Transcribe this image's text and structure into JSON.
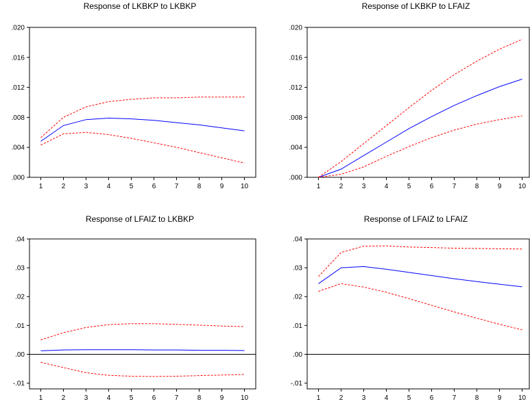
{
  "chart_data": [
    {
      "type": "line",
      "title": "Response of LKBKP to LKBKP",
      "x": [
        1,
        2,
        3,
        4,
        5,
        6,
        7,
        8,
        9,
        10
      ],
      "ylim": [
        0,
        0.02
      ],
      "yticks": [
        ".000",
        ".004",
        ".008",
        ".012",
        ".016",
        ".020"
      ],
      "ytick_values": [
        0,
        0.004,
        0.008,
        0.012,
        0.016,
        0.02
      ],
      "xtick_labels": [
        "1",
        "2",
        "3",
        "4",
        "5",
        "6",
        "7",
        "8",
        "9",
        "10"
      ],
      "zero_line": false,
      "series": [
        {
          "role": "response",
          "color": "#0000ff",
          "style": "solid",
          "values": [
            0.0048,
            0.0069,
            0.0077,
            0.0079,
            0.0078,
            0.0076,
            0.0073,
            0.007,
            0.0066,
            0.0062
          ]
        },
        {
          "role": "upper",
          "color": "#ff0000",
          "style": "dashed",
          "values": [
            0.0053,
            0.008,
            0.0094,
            0.0101,
            0.0104,
            0.0106,
            0.0106,
            0.0107,
            0.0107,
            0.0107
          ]
        },
        {
          "role": "lower",
          "color": "#ff0000",
          "style": "dashed",
          "values": [
            0.0043,
            0.0058,
            0.006,
            0.0057,
            0.0052,
            0.0046,
            0.004,
            0.0033,
            0.0026,
            0.0019
          ]
        }
      ]
    },
    {
      "type": "line",
      "title": "Response of LKBKP to LFAIZ",
      "x": [
        1,
        2,
        3,
        4,
        5,
        6,
        7,
        8,
        9,
        10
      ],
      "ylim": [
        0,
        0.02
      ],
      "yticks": [
        ".000",
        ".004",
        ".008",
        ".012",
        ".016",
        ".020"
      ],
      "ytick_values": [
        0,
        0.004,
        0.008,
        0.012,
        0.016,
        0.02
      ],
      "xtick_labels": [
        "1",
        "2",
        "3",
        "4",
        "5",
        "6",
        "7",
        "8",
        "9",
        "10"
      ],
      "zero_line": false,
      "series": [
        {
          "role": "response",
          "color": "#0000ff",
          "style": "solid",
          "values": [
            0.0,
            0.0011,
            0.0029,
            0.0047,
            0.0065,
            0.0081,
            0.0096,
            0.0109,
            0.0121,
            0.0131
          ]
        },
        {
          "role": "upper",
          "color": "#ff0000",
          "style": "dashed",
          "values": [
            0.0,
            0.0021,
            0.0045,
            0.0069,
            0.0093,
            0.0116,
            0.0137,
            0.0155,
            0.0171,
            0.0184
          ]
        },
        {
          "role": "lower",
          "color": "#ff0000",
          "style": "dashed",
          "values": [
            0.0,
            0.0004,
            0.0014,
            0.0028,
            0.0041,
            0.0053,
            0.0063,
            0.0071,
            0.0077,
            0.0082
          ]
        }
      ]
    },
    {
      "type": "line",
      "title": "Response of LFAIZ to LKBKP",
      "x": [
        1,
        2,
        3,
        4,
        5,
        6,
        7,
        8,
        9,
        10
      ],
      "ylim": [
        -0.012,
        0.04
      ],
      "yticks": [
        "-.01",
        ".00",
        ".01",
        ".02",
        ".03",
        ".04"
      ],
      "ytick_values": [
        -0.01,
        0,
        0.01,
        0.02,
        0.03,
        0.04
      ],
      "xtick_labels": [
        "1",
        "2",
        "3",
        "4",
        "5",
        "6",
        "7",
        "8",
        "9",
        "10"
      ],
      "zero_line": true,
      "series": [
        {
          "role": "response",
          "color": "#0000ff",
          "style": "solid",
          "values": [
            0.0012,
            0.0015,
            0.0016,
            0.0016,
            0.0016,
            0.0015,
            0.0015,
            0.0014,
            0.0014,
            0.0013
          ]
        },
        {
          "role": "upper",
          "color": "#ff0000",
          "style": "dashed",
          "values": [
            0.005,
            0.0075,
            0.0093,
            0.0103,
            0.0106,
            0.0106,
            0.0104,
            0.0101,
            0.0098,
            0.0096
          ]
        },
        {
          "role": "lower",
          "color": "#ff0000",
          "style": "dashed",
          "values": [
            -0.0028,
            -0.0046,
            -0.0064,
            -0.0073,
            -0.0076,
            -0.0077,
            -0.0076,
            -0.0074,
            -0.0072,
            -0.007
          ]
        }
      ]
    },
    {
      "type": "line",
      "title": "Response of LFAIZ to LFAIZ",
      "x": [
        1,
        2,
        3,
        4,
        5,
        6,
        7,
        8,
        9,
        10
      ],
      "ylim": [
        -0.012,
        0.04
      ],
      "yticks": [
        "-.01",
        ".00",
        ".01",
        ".02",
        ".03",
        ".04"
      ],
      "ytick_values": [
        -0.01,
        0,
        0.01,
        0.02,
        0.03,
        0.04
      ],
      "xtick_labels": [
        "1",
        "2",
        "3",
        "4",
        "5",
        "6",
        "7",
        "8",
        "9",
        "10"
      ],
      "zero_line": true,
      "series": [
        {
          "role": "response",
          "color": "#0000ff",
          "style": "solid",
          "values": [
            0.0245,
            0.03,
            0.0304,
            0.0295,
            0.0284,
            0.0273,
            0.0262,
            0.0252,
            0.0243,
            0.0234
          ]
        },
        {
          "role": "upper",
          "color": "#ff0000",
          "style": "dashed",
          "values": [
            0.027,
            0.0353,
            0.0375,
            0.0376,
            0.0372,
            0.037,
            0.0368,
            0.0367,
            0.0366,
            0.0365
          ]
        },
        {
          "role": "lower",
          "color": "#ff0000",
          "style": "dashed",
          "values": [
            0.0218,
            0.0245,
            0.0233,
            0.0215,
            0.0193,
            0.017,
            0.0147,
            0.0125,
            0.0104,
            0.0085
          ]
        }
      ]
    }
  ]
}
